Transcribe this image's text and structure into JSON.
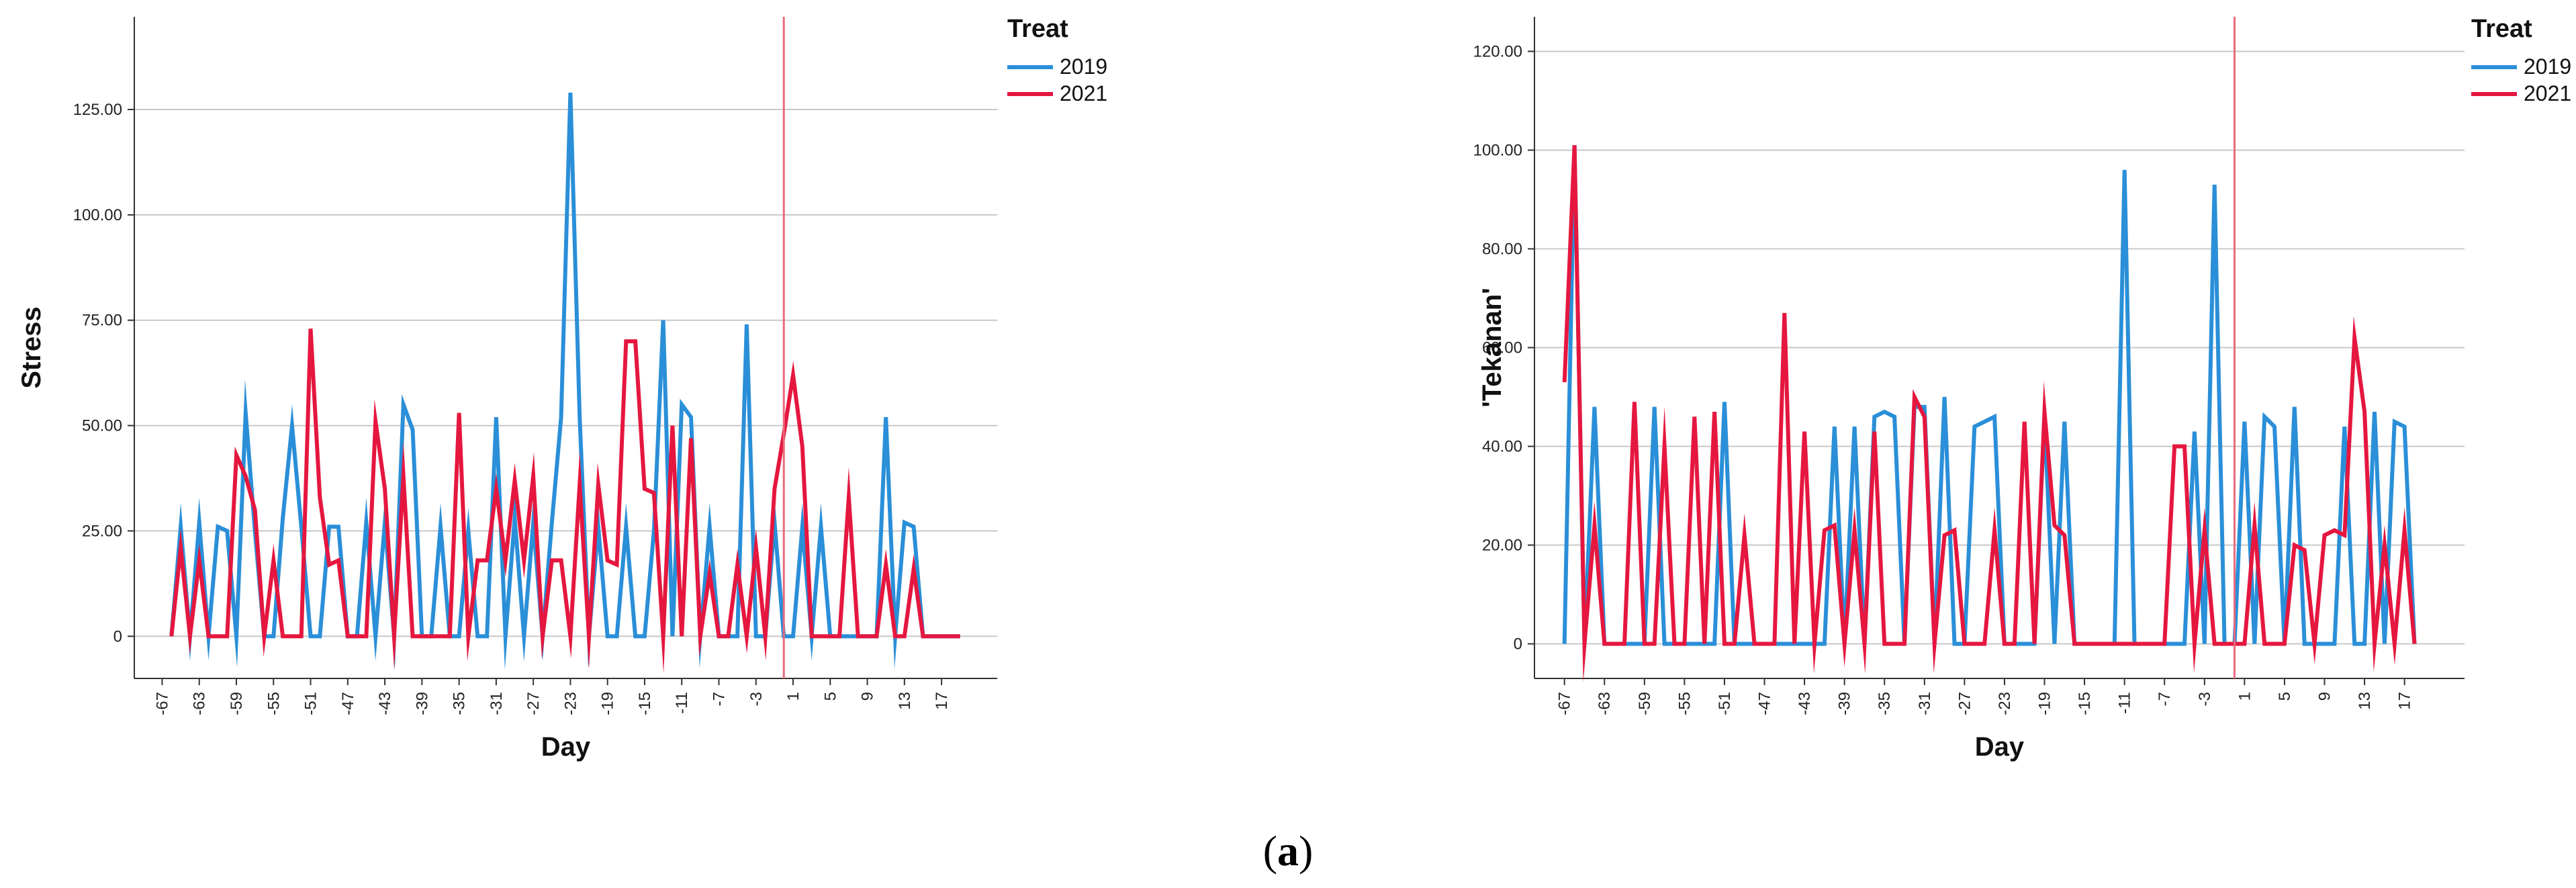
{
  "colors": {
    "2019": "#2a8fd8",
    "2021": "#e5173f",
    "refline": "#e86a7d",
    "grid": "#c8c8c8",
    "axis": "#333333"
  },
  "caption": {
    "open": "(",
    "letter": "a",
    "close": ")"
  },
  "chart_data": [
    {
      "type": "line",
      "ylabel": "Stress",
      "xlabel": "Day",
      "legend_title": "Treat",
      "legend_position": "top-right",
      "ylim": [
        -10,
        147
      ],
      "yticks": [
        0,
        25,
        50,
        75,
        100,
        125
      ],
      "ytick_labels": [
        "0",
        "25.00",
        "50.00",
        "75.00",
        "100.00",
        "125.00"
      ],
      "xlim": [
        -70,
        23
      ],
      "xticks": [
        -67,
        -63,
        -59,
        -55,
        -51,
        -47,
        -43,
        -39,
        -35,
        -31,
        -27,
        -23,
        -19,
        -15,
        -11,
        -7,
        -3,
        1,
        5,
        9,
        13,
        17
      ],
      "reference_line_x": 0,
      "series": [
        {
          "name": "2019",
          "x": [
            -66,
            -65,
            -64,
            -63,
            -62,
            -61,
            -60,
            -59,
            -58,
            -57,
            -56,
            -55,
            -54,
            -53,
            -52,
            -51,
            -50,
            -49,
            -48,
            -47,
            -46,
            -45,
            -44,
            -43,
            -42,
            -41,
            -40,
            -39,
            -38,
            -37,
            -36,
            -35,
            -34,
            -33,
            -32,
            -31,
            -30,
            -29,
            -28,
            -27,
            -26,
            -25,
            -24,
            -23,
            -22,
            -21,
            -20,
            -19,
            -18,
            -17,
            -16,
            -15,
            -14,
            -13,
            -12,
            -11,
            -10,
            -9,
            -8,
            -7,
            -6,
            -5,
            -4,
            -3,
            -2,
            -1,
            0,
            1,
            2,
            3,
            4,
            5,
            6,
            7,
            8,
            9,
            10,
            11,
            12,
            13,
            14,
            15,
            16,
            17,
            18,
            19
          ],
          "y": [
            0,
            26,
            0,
            27,
            0,
            26,
            25,
            0,
            53,
            25,
            0,
            0,
            28,
            50,
            26,
            0,
            0,
            26,
            26,
            0,
            0,
            27,
            0,
            27,
            0,
            55,
            49,
            0,
            0,
            26,
            0,
            0,
            25,
            0,
            0,
            52,
            0,
            28,
            0,
            27,
            0,
            27,
            52,
            129,
            52,
            0,
            26,
            0,
            0,
            26,
            0,
            0,
            25,
            75,
            0,
            55,
            52,
            0,
            26,
            0,
            0,
            0,
            74,
            0,
            0,
            27,
            0,
            0,
            26,
            0,
            26,
            0,
            0,
            0,
            0,
            0,
            0,
            52,
            0,
            27,
            26,
            0,
            0,
            0,
            0,
            0
          ]
        },
        {
          "name": "2021",
          "x": [
            -66,
            -65,
            -64,
            -63,
            -62,
            -61,
            -60,
            -59,
            -58,
            -57,
            -56,
            -55,
            -54,
            -53,
            -52,
            -51,
            -50,
            -49,
            -48,
            -47,
            -46,
            -45,
            -44,
            -43,
            -42,
            -41,
            -40,
            -39,
            -38,
            -37,
            -36,
            -35,
            -34,
            -33,
            -32,
            -31,
            -30,
            -29,
            -28,
            -27,
            -26,
            -25,
            -24,
            -23,
            -22,
            -21,
            -20,
            -19,
            -18,
            -17,
            -16,
            -15,
            -14,
            -13,
            -12,
            -11,
            -10,
            -9,
            -8,
            -7,
            -6,
            -5,
            -4,
            -3,
            -2,
            -1,
            0,
            1,
            2,
            3,
            4,
            5,
            6,
            7,
            8,
            9,
            10,
            11,
            12,
            13,
            14,
            15,
            16,
            17,
            18,
            19
          ],
          "y": [
            0,
            21,
            0,
            18,
            0,
            0,
            0,
            43,
            38,
            30,
            0,
            18,
            0,
            0,
            0,
            73,
            33,
            17,
            18,
            0,
            0,
            0,
            51,
            35,
            0,
            38,
            0,
            0,
            0,
            0,
            0,
            53,
            0,
            18,
            18,
            35,
            18,
            37,
            18,
            38,
            0,
            18,
            18,
            0,
            36,
            0,
            36,
            18,
            17,
            70,
            70,
            35,
            34,
            0,
            50,
            0,
            47,
            0,
            15,
            0,
            0,
            17,
            0,
            21,
            0,
            35,
            48,
            62,
            45,
            0,
            0,
            0,
            0,
            33,
            0,
            0,
            0,
            17,
            0,
            0,
            16,
            0,
            0,
            0,
            0,
            0
          ]
        }
      ]
    },
    {
      "type": "line",
      "ylabel": "'Tekanan'",
      "xlabel": "Day",
      "legend_title": "Treat",
      "legend_position": "top-right",
      "ylim": [
        -7,
        127
      ],
      "yticks": [
        0,
        20,
        40,
        60,
        80,
        100,
        120
      ],
      "ytick_labels": [
        "0",
        "20.00",
        "40.00",
        "60.00",
        "80.00",
        "100.00",
        "120.00"
      ],
      "xlim": [
        -70,
        23
      ],
      "xticks": [
        -67,
        -63,
        -59,
        -55,
        -51,
        -47,
        -43,
        -39,
        -35,
        -31,
        -27,
        -23,
        -19,
        -15,
        -11,
        -7,
        -3,
        1,
        5,
        9,
        13,
        17
      ],
      "reference_line_x": 0,
      "series": [
        {
          "name": "2019",
          "x": [
            -67,
            -66,
            -65,
            -64,
            -63,
            -62,
            -61,
            -60,
            -59,
            -58,
            -57,
            -56,
            -55,
            -54,
            -53,
            -52,
            -51,
            -50,
            -49,
            -48,
            -47,
            -46,
            -45,
            -44,
            -43,
            -42,
            -41,
            -40,
            -39,
            -38,
            -37,
            -36,
            -35,
            -34,
            -33,
            -32,
            -31,
            -30,
            -29,
            -28,
            -27,
            -26,
            -25,
            -24,
            -23,
            -22,
            -21,
            -20,
            -19,
            -18,
            -17,
            -16,
            -15,
            -14,
            -13,
            -12,
            -11,
            -10,
            -9,
            -8,
            -7,
            -6,
            -5,
            -4,
            -3,
            -2,
            -1,
            0,
            1,
            2,
            3,
            4,
            5,
            6,
            7,
            8,
            9,
            10,
            11,
            12,
            13,
            14,
            15,
            16,
            17,
            18
          ],
          "y": [
            0,
            101,
            0,
            48,
            0,
            0,
            0,
            0,
            0,
            48,
            0,
            0,
            0,
            0,
            0,
            0,
            49,
            0,
            0,
            0,
            0,
            0,
            0,
            0,
            0,
            0,
            0,
            44,
            0,
            44,
            0,
            46,
            47,
            46,
            0,
            48,
            48,
            0,
            50,
            0,
            0,
            44,
            45,
            46,
            0,
            0,
            0,
            0,
            46,
            0,
            45,
            0,
            0,
            0,
            0,
            0,
            96,
            0,
            0,
            0,
            0,
            0,
            0,
            43,
            0,
            93,
            0,
            0,
            45,
            0,
            46,
            44,
            0,
            48,
            0,
            0,
            0,
            0,
            44,
            0,
            0,
            47,
            0,
            45,
            44,
            0
          ]
        },
        {
          "name": "2021",
          "x": [
            -67,
            -66,
            -65,
            -64,
            -63,
            -62,
            -61,
            -60,
            -59,
            -58,
            -57,
            -56,
            -55,
            -54,
            -53,
            -52,
            -51,
            -50,
            -49,
            -48,
            -47,
            -46,
            -45,
            -44,
            -43,
            -42,
            -41,
            -40,
            -39,
            -38,
            -37,
            -36,
            -35,
            -34,
            -33,
            -32,
            -31,
            -30,
            -29,
            -28,
            -27,
            -26,
            -25,
            -24,
            -23,
            -22,
            -21,
            -20,
            -19,
            -18,
            -17,
            -16,
            -15,
            -14,
            -13,
            -12,
            -11,
            -10,
            -9,
            -8,
            -7,
            -6,
            -5,
            -4,
            -3,
            -2,
            -1,
            0,
            1,
            2,
            3,
            4,
            5,
            6,
            7,
            8,
            9,
            10,
            11,
            12,
            13,
            14,
            15,
            16,
            17,
            18
          ],
          "y": [
            53,
            101,
            0,
            24,
            0,
            0,
            0,
            49,
            0,
            0,
            40,
            0,
            0,
            46,
            0,
            47,
            0,
            0,
            22,
            0,
            0,
            0,
            67,
            0,
            43,
            0,
            23,
            24,
            0,
            23,
            0,
            43,
            0,
            0,
            0,
            50,
            46,
            0,
            22,
            23,
            0,
            0,
            0,
            23,
            0,
            0,
            45,
            0,
            47,
            24,
            22,
            0,
            0,
            0,
            0,
            0,
            0,
            0,
            0,
            0,
            0,
            40,
            40,
            0,
            23,
            0,
            0,
            0,
            0,
            24,
            0,
            0,
            0,
            20,
            19,
            0,
            22,
            23,
            22,
            62,
            47,
            0,
            20,
            0,
            23,
            0
          ]
        }
      ]
    }
  ]
}
